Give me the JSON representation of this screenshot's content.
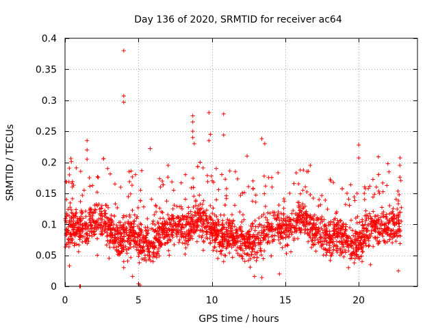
{
  "chart_data": {
    "type": "scatter",
    "title": "Day 136 of 2020, SRMTID for receiver ac64",
    "xlabel": "GPS time / hours",
    "ylabel": "SRMTID / TECUs",
    "xlim": [
      0,
      24
    ],
    "ylim": [
      0,
      0.4
    ],
    "xticks": [
      0,
      5,
      10,
      15,
      20
    ],
    "yticks": [
      0,
      0.05,
      0.1,
      0.15,
      0.2,
      0.25,
      0.3,
      0.35,
      0.4
    ],
    "xtick_labels": [
      "0",
      "5",
      "10",
      "15",
      "20"
    ],
    "ytick_labels": [
      "0",
      "0.05",
      "0.1",
      "0.15",
      "0.2",
      "0.25",
      "0.3",
      "0.35",
      "0.4"
    ],
    "grid": true,
    "marker": "+",
    "color": "#ff0000",
    "series": [
      {
        "name": "SRMTID",
        "note": "dense scatter of ~2500 samples, approx 0.03-0.15 TECU; points listed are the readable outliers",
        "points": [
          [
            4.0,
            0.38
          ],
          [
            4.0,
            0.307
          ],
          [
            4.0,
            0.297
          ],
          [
            4.0,
            0.04
          ],
          [
            4.0,
            0.03
          ],
          [
            8.7,
            0.275
          ],
          [
            8.7,
            0.265
          ],
          [
            8.7,
            0.25
          ],
          [
            8.7,
            0.24
          ],
          [
            8.8,
            0.23
          ],
          [
            9.8,
            0.28
          ],
          [
            9.9,
            0.245
          ],
          [
            9.8,
            0.235
          ],
          [
            10.8,
            0.278
          ],
          [
            10.8,
            0.244
          ],
          [
            1.5,
            0.235
          ],
          [
            1.5,
            0.22
          ],
          [
            1.5,
            0.205
          ],
          [
            0.4,
            0.206
          ],
          [
            5.8,
            0.222
          ],
          [
            20.0,
            0.228
          ],
          [
            20.0,
            0.207
          ],
          [
            22.8,
            0.195
          ],
          [
            22.8,
            0.176
          ],
          [
            16.7,
            0.195
          ],
          [
            13.4,
            0.238
          ],
          [
            13.6,
            0.23
          ],
          [
            12.4,
            0.21
          ],
          [
            5.0,
            0.004
          ],
          [
            5.1,
            0.002
          ],
          [
            1.0,
            0.0
          ],
          [
            1.05,
            0.0
          ],
          [
            4.6,
            0.016
          ],
          [
            12.9,
            0.016
          ],
          [
            13.4,
            0.014
          ],
          [
            20.8,
            0.035
          ],
          [
            22.7,
            0.025
          ],
          [
            19.3,
            0.03
          ],
          [
            14.6,
            0.02
          ],
          [
            10.8,
            0.04
          ],
          [
            0.3,
            0.033
          ],
          [
            2.2,
            0.05
          ],
          [
            3.0,
            0.045
          ],
          [
            6.0,
            0.04
          ],
          [
            7.1,
            0.05
          ],
          [
            0.1,
            0.14
          ],
          [
            0.5,
            0.16
          ],
          [
            2.9,
            0.19
          ],
          [
            3.4,
            0.165
          ],
          [
            4.8,
            0.18
          ],
          [
            6.5,
            0.16
          ],
          [
            7.4,
            0.155
          ],
          [
            8.2,
            0.18
          ],
          [
            9.2,
            0.2
          ],
          [
            10.3,
            0.19
          ],
          [
            11.6,
            0.185
          ],
          [
            12.8,
            0.17
          ],
          [
            14.1,
            0.16
          ],
          [
            15.3,
            0.15
          ],
          [
            16.2,
            0.155
          ],
          [
            17.3,
            0.14
          ],
          [
            18.1,
            0.17
          ],
          [
            19.2,
            0.15
          ],
          [
            20.4,
            0.14
          ],
          [
            21.2,
            0.16
          ],
          [
            22.1,
            0.13
          ],
          [
            0.2,
            0.09
          ],
          [
            1.2,
            0.08
          ],
          [
            2.5,
            0.085
          ],
          [
            3.6,
            0.07
          ],
          [
            5.5,
            0.09
          ],
          [
            6.8,
            0.1
          ],
          [
            8.0,
            0.085
          ],
          [
            9.5,
            0.095
          ],
          [
            11.0,
            0.08
          ],
          [
            12.2,
            0.075
          ],
          [
            13.8,
            0.07
          ],
          [
            15.0,
            0.065
          ],
          [
            16.5,
            0.085
          ],
          [
            17.8,
            0.09
          ],
          [
            19.0,
            0.075
          ],
          [
            20.6,
            0.08
          ],
          [
            21.8,
            0.07
          ],
          [
            22.5,
            0.085
          ],
          [
            0.6,
            0.11
          ],
          [
            1.8,
            0.12
          ],
          [
            3.2,
            0.105
          ],
          [
            4.4,
            0.115
          ],
          [
            6.2,
            0.12
          ],
          [
            7.6,
            0.11
          ],
          [
            9.0,
            0.125
          ],
          [
            10.6,
            0.115
          ],
          [
            11.9,
            0.12
          ],
          [
            13.2,
            0.11
          ],
          [
            14.5,
            0.1
          ],
          [
            15.8,
            0.105
          ],
          [
            17.0,
            0.115
          ],
          [
            18.5,
            0.12
          ],
          [
            19.8,
            0.11
          ],
          [
            21.5,
            0.1
          ]
        ]
      }
    ]
  }
}
